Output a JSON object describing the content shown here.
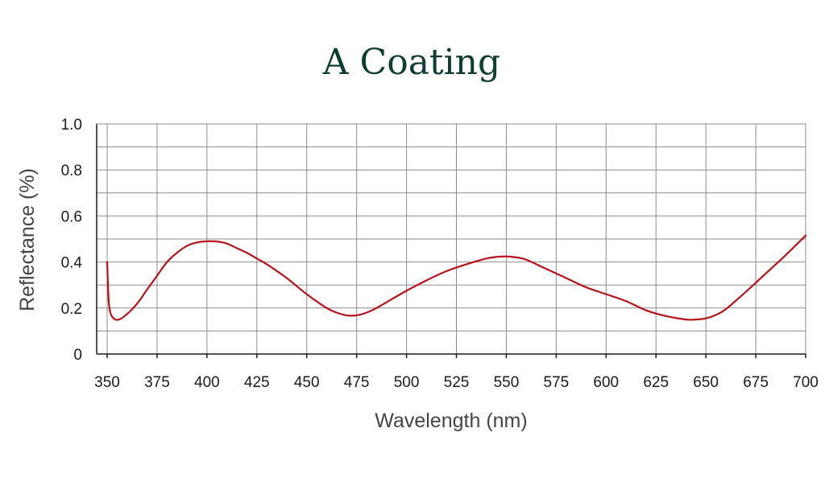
{
  "chart_data": {
    "type": "line",
    "title": "A Coating",
    "xlabel": "Wavelength (nm)",
    "ylabel": "Reflectance (%)",
    "xlim": [
      350,
      700
    ],
    "ylim": [
      0,
      1.0
    ],
    "x_ticks": [
      350,
      375,
      400,
      425,
      450,
      475,
      500,
      525,
      550,
      575,
      600,
      625,
      650,
      675,
      700
    ],
    "x_tick_labels": [
      "350",
      "375",
      "400",
      "425",
      "450",
      "475",
      "500",
      "525",
      "550",
      "575",
      "600",
      "625",
      "650",
      "675",
      "700"
    ],
    "y_ticks": [
      0,
      0.2,
      0.4,
      0.6,
      0.8,
      1.0
    ],
    "y_tick_labels": [
      "0",
      "0.2",
      "0.4",
      "0.6",
      "0.8",
      "1.0"
    ],
    "grid": true,
    "legend": "none",
    "colors": {
      "series": "#b5121b",
      "title": "#0f3d33"
    },
    "series": [
      {
        "x": [
          350,
          350.5,
          351,
          352,
          354,
          356,
          358,
          362,
          366,
          370,
          375,
          380,
          385,
          390,
          395,
          400,
          403,
          406,
          410,
          415,
          420,
          425,
          430,
          440,
          450,
          460,
          465,
          470,
          475,
          480,
          485,
          490,
          500,
          510,
          520,
          530,
          540,
          545,
          550,
          555,
          560,
          570,
          580,
          590,
          600,
          610,
          620,
          630,
          640,
          645,
          650,
          655,
          660,
          670,
          680,
          690,
          700
        ],
        "y": [
          0.4,
          0.28,
          0.21,
          0.17,
          0.15,
          0.15,
          0.16,
          0.19,
          0.23,
          0.28,
          0.34,
          0.4,
          0.44,
          0.47,
          0.485,
          0.49,
          0.49,
          0.488,
          0.48,
          0.46,
          0.44,
          0.415,
          0.39,
          0.33,
          0.26,
          0.2,
          0.18,
          0.168,
          0.168,
          0.18,
          0.2,
          0.225,
          0.275,
          0.32,
          0.36,
          0.39,
          0.415,
          0.422,
          0.424,
          0.42,
          0.41,
          0.37,
          0.33,
          0.29,
          0.26,
          0.23,
          0.19,
          0.165,
          0.15,
          0.15,
          0.155,
          0.17,
          0.195,
          0.27,
          0.35,
          0.43,
          0.515
        ]
      }
    ]
  }
}
